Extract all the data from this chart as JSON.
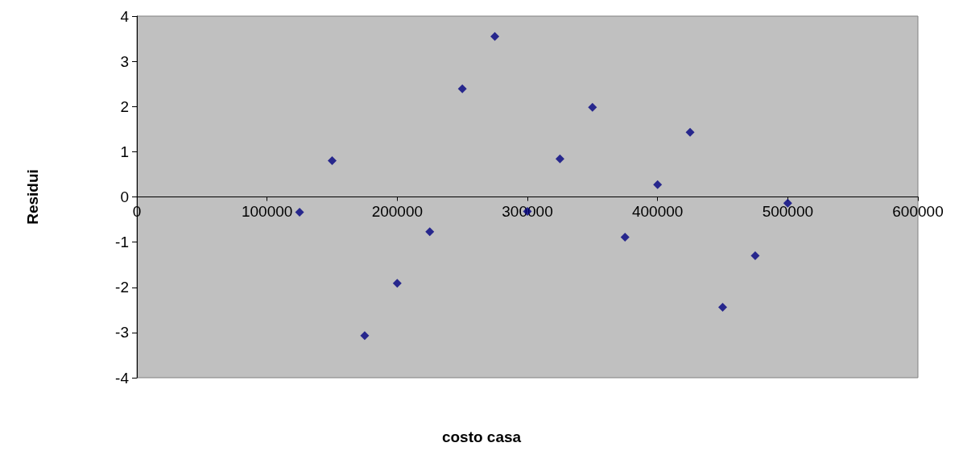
{
  "chart_data": {
    "type": "scatter",
    "xlabel": "costo casa",
    "ylabel": "Residui",
    "x": [
      125000,
      150000,
      175000,
      200000,
      225000,
      250000,
      275000,
      300000,
      325000,
      350000,
      375000,
      400000,
      425000,
      450000,
      475000,
      500000
    ],
    "values": [
      -0.34,
      0.8,
      -3.07,
      -1.91,
      -0.77,
      2.39,
      3.55,
      -0.32,
      0.84,
      1.98,
      -0.89,
      0.27,
      1.43,
      -2.44,
      -1.3,
      -0.14
    ],
    "color": "#000080",
    "marker": "diamond",
    "xlim": [
      0,
      600000
    ],
    "xticks": [
      0,
      100000,
      200000,
      300000,
      400000,
      500000,
      600000
    ],
    "ylim": [
      -4,
      4
    ],
    "yticks": [
      -4,
      -3,
      -2,
      -1,
      0,
      1,
      2,
      3,
      4
    ]
  }
}
